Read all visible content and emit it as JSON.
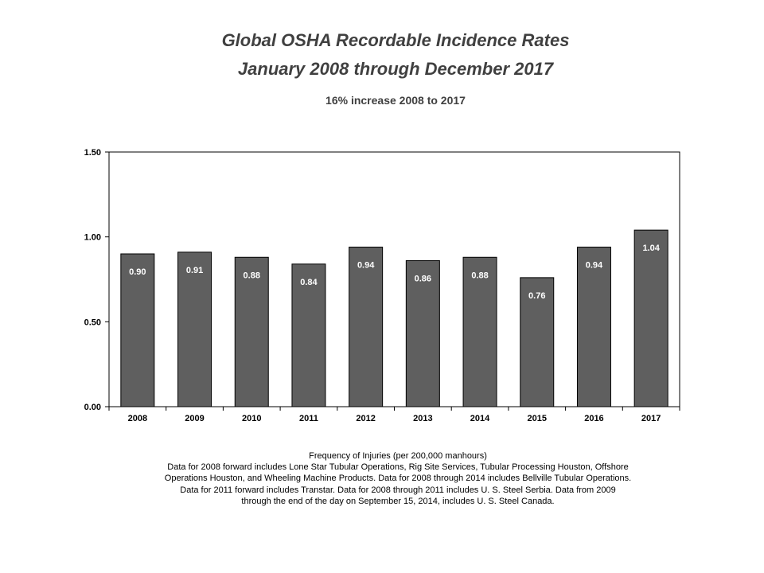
{
  "chart_data": {
    "type": "bar",
    "title": "Global OSHA Recordable Incidence Rates",
    "title_line2": "January 2008 through December 2017",
    "subtitle": "16% increase 2008 to 2017",
    "categories": [
      "2008",
      "2009",
      "2010",
      "2011",
      "2012",
      "2013",
      "2014",
      "2015",
      "2016",
      "2017"
    ],
    "values": [
      0.9,
      0.91,
      0.88,
      0.84,
      0.94,
      0.86,
      0.88,
      0.76,
      0.94,
      1.04
    ],
    "data_labels": [
      "0.90",
      "0.91",
      "0.88",
      "0.84",
      "0.94",
      "0.86",
      "0.88",
      "0.76",
      "0.94",
      "1.04"
    ],
    "ylim": [
      0,
      1.5
    ],
    "yticks": [
      0,
      0.5,
      1.0,
      1.5
    ],
    "ytick_labels": [
      "0.00",
      "0.50",
      "1.00",
      "1.50"
    ],
    "xlabel": "",
    "ylabel": "",
    "grid": false,
    "bar_color": "#5f5f5f",
    "label_color": "#ffffff"
  },
  "footnote": {
    "lines": [
      "Frequency of Injuries (per 200,000 manhours)",
      "Data for 2008 forward includes Lone Star Tubular Operations, Rig Site Services, Tubular Processing Houston, Offshore",
      "Operations Houston, and Wheeling Machine Products.  Data for 2008 through 2014 includes Bellville Tubular Operations.",
      "Data for 2011 forward includes Transtar.  Data for 2008 through 2011 includes U. S. Steel Serbia.  Data from 2009",
      "through the end of the day on September 15, 2014, includes U. S. Steel Canada."
    ]
  }
}
